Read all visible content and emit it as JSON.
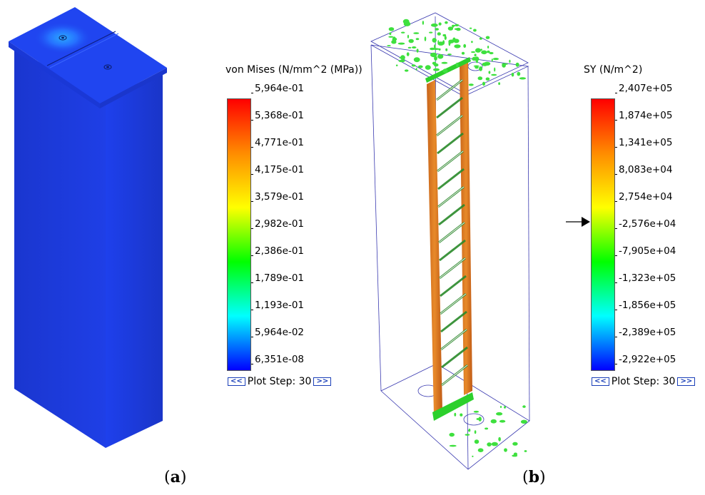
{
  "panel_a": {
    "caption_open": "(",
    "caption_letter": "a",
    "caption_close": ")",
    "legend_title": "von Mises (N/mm^2 (MPa))",
    "ticks": [
      "5,964e-01",
      "5,368e-01",
      "4,771e-01",
      "4,175e-01",
      "3,579e-01",
      "2,982e-01",
      "2,386e-01",
      "1,789e-01",
      "1,193e-01",
      "5,964e-02",
      "6,351e-08"
    ],
    "plot_step_label": "Plot Step: 30",
    "prev_label": "<<",
    "next_label": ">>"
  },
  "panel_b": {
    "caption_open": "(",
    "caption_letter": "b",
    "caption_close": ")",
    "legend_title": "SY (N/m^2)",
    "ticks": [
      "2,407e+05",
      "1,874e+05",
      "1,341e+05",
      "8,083e+04",
      "2,754e+04",
      "-2,576e+04",
      "-7,905e+04",
      "-1,323e+05",
      "-1,856e+05",
      "-2,389e+05",
      "-2,922e+05"
    ],
    "plot_step_label": "Plot Step: 30",
    "prev_label": "<<",
    "next_label": ">>",
    "marker_value": "0"
  },
  "colors": {
    "colorbar_gradient": [
      "#ff0000",
      "#ff8c00",
      "#ffff00",
      "#00ff00",
      "#00ffff",
      "#0000ff"
    ],
    "model_blue": "#1c3fe0",
    "strut_orange": "#d87020",
    "speckle_green": "#3ee03e"
  }
}
